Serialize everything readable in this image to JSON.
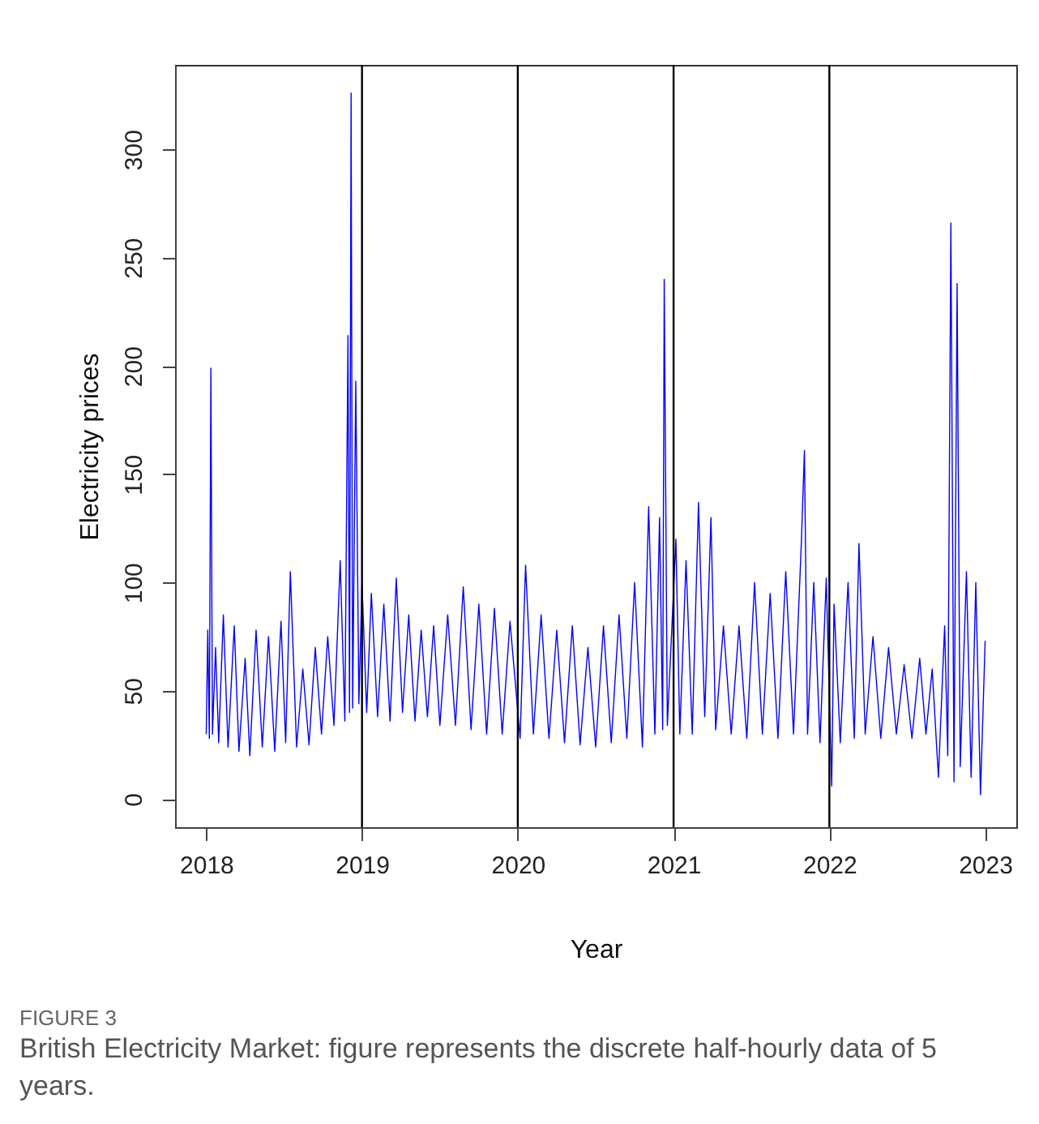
{
  "chart_data": {
    "type": "line",
    "xlabel": "Year",
    "ylabel": "Electricity prices",
    "annotations": [
      "FIGURE 3",
      "British Electricity Market: figure represents the discrete half-hourly data of 5 years."
    ],
    "xlim": [
      2017.8,
      2023.2
    ],
    "xticks": [
      2018,
      2019,
      2020,
      2021,
      2022,
      2023
    ],
    "ylim": [
      -13,
      339
    ],
    "yticks": [
      0,
      50,
      100,
      150,
      200,
      250,
      300
    ],
    "grid": false,
    "ref_lines": [
      {
        "axis": "x",
        "value": 2019,
        "color": "#000000"
      },
      {
        "axis": "x",
        "value": 2020,
        "color": "#000000"
      },
      {
        "axis": "x",
        "value": 2021,
        "color": "#000000"
      },
      {
        "axis": "x",
        "value": 2022,
        "color": "#000000"
      }
    ],
    "series": [
      {
        "color": "#0000ff",
        "x": [
          2018.0,
          2018.01,
          2018.02,
          2018.03,
          2018.04,
          2018.06,
          2018.08,
          2018.11,
          2018.14,
          2018.18,
          2018.21,
          2018.25,
          2018.28,
          2018.32,
          2018.36,
          2018.4,
          2018.44,
          2018.48,
          2018.51,
          2018.54,
          2018.58,
          2018.62,
          2018.66,
          2018.7,
          2018.74,
          2018.78,
          2018.82,
          2018.86,
          2018.89,
          2018.91,
          2018.92,
          2018.93,
          2018.94,
          2018.96,
          2018.98,
          2019.0,
          2019.03,
          2019.06,
          2019.1,
          2019.14,
          2019.18,
          2019.22,
          2019.26,
          2019.3,
          2019.34,
          2019.38,
          2019.42,
          2019.46,
          2019.5,
          2019.55,
          2019.6,
          2019.65,
          2019.7,
          2019.75,
          2019.8,
          2019.85,
          2019.9,
          2019.95,
          2020.015,
          2020.05,
          2020.1,
          2020.15,
          2020.2,
          2020.25,
          2020.3,
          2020.35,
          2020.4,
          2020.45,
          2020.5,
          2020.55,
          2020.6,
          2020.65,
          2020.7,
          2020.75,
          2020.8,
          2020.84,
          2020.88,
          2020.91,
          2020.93,
          2020.94,
          2020.96,
          2021.015,
          2021.04,
          2021.08,
          2021.12,
          2021.16,
          2021.2,
          2021.24,
          2021.27,
          2021.32,
          2021.37,
          2021.42,
          2021.47,
          2021.52,
          2021.57,
          2021.62,
          2021.67,
          2021.72,
          2021.77,
          2021.82,
          2021.84,
          2021.86,
          2021.9,
          2021.94,
          2021.98,
          2022.015,
          2022.03,
          2022.07,
          2022.12,
          2022.16,
          2022.19,
          2022.23,
          2022.28,
          2022.33,
          2022.38,
          2022.43,
          2022.48,
          2022.53,
          2022.58,
          2022.62,
          2022.66,
          2022.7,
          2022.74,
          2022.76,
          2022.78,
          2022.8,
          2022.82,
          2022.84,
          2022.88,
          2022.91,
          2022.94,
          2022.97,
          2023.0
        ],
        "values": [
          30,
          78,
          28,
          199,
          30,
          70,
          26,
          85,
          24,
          80,
          22,
          65,
          20,
          78,
          24,
          75,
          22,
          82,
          26,
          105,
          24,
          60,
          25,
          70,
          30,
          75,
          34,
          110,
          36,
          214,
          40,
          326,
          42,
          193,
          44,
          100,
          40,
          95,
          38,
          90,
          36,
          102,
          40,
          85,
          36,
          78,
          38,
          80,
          34,
          85,
          34,
          98,
          32,
          90,
          30,
          88,
          30,
          82,
          28,
          108,
          30,
          85,
          28,
          78,
          26,
          80,
          25,
          70,
          24,
          80,
          26,
          85,
          28,
          100,
          24,
          135,
          30,
          130,
          32,
          240,
          34,
          120,
          30,
          110,
          30,
          137,
          38,
          130,
          32,
          80,
          30,
          80,
          28,
          100,
          30,
          95,
          28,
          105,
          30,
          118,
          161,
          30,
          100,
          26,
          102,
          6,
          90,
          26,
          100,
          28,
          118,
          30,
          75,
          28,
          70,
          30,
          62,
          28,
          65,
          30,
          60,
          10,
          80,
          20,
          266,
          8,
          238,
          15,
          105,
          10,
          100,
          2,
          73
        ]
      }
    ]
  }
}
